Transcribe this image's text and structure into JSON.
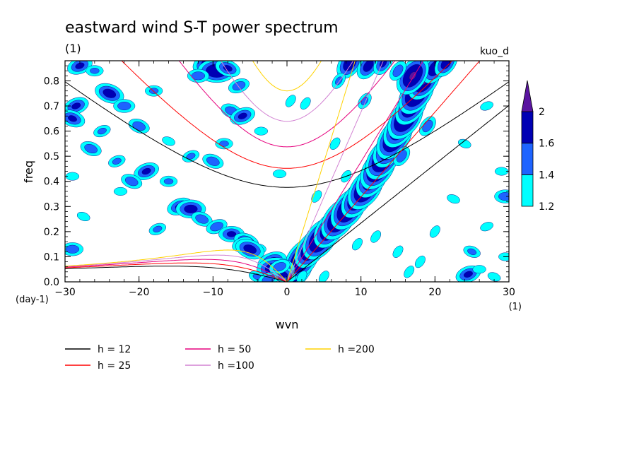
{
  "chart_data": {
    "type": "heatmap",
    "title": "eastward wind S-T power spectrum",
    "subtitle": "(1)",
    "tag": "kuo_d",
    "xlabel": "wvn",
    "ylabel": "freq",
    "x_unit": "(1)",
    "y_unit": "(day-1)",
    "xlim": [
      -30,
      30
    ],
    "ylim": [
      0,
      0.88
    ],
    "xticks": [
      "-30",
      "-20",
      "-10",
      "0",
      "10",
      "20",
      "30"
    ],
    "yticks": [
      "0.0",
      "0.1",
      "0.2",
      "0.3",
      "0.4",
      "0.5",
      "0.6",
      "0.7",
      "0.8"
    ],
    "colorbar": {
      "levels": [
        "1.2",
        "1.4",
        "1.6",
        "2"
      ],
      "colors": [
        "#00ffff",
        "#1e64ff",
        "#0000b4",
        "#5a14a0"
      ]
    },
    "dispersion_curves": [
      {
        "name": "h = 12",
        "h": 12,
        "color": "#000000"
      },
      {
        "name": "h = 25",
        "h": 25,
        "color": "#ff0000"
      },
      {
        "name": "h = 50",
        "h": 50,
        "color": "#e6007d"
      },
      {
        "name": "h =100",
        "h": 100,
        "color": "#d282d2"
      },
      {
        "name": "h =200",
        "h": 200,
        "color": "#ffd200"
      }
    ],
    "power_blobs": [
      {
        "x": 1.2,
        "y": 0.05,
        "v": 2.1
      },
      {
        "x": 2.0,
        "y": 0.09,
        "v": 2.1
      },
      {
        "x": 3.2,
        "y": 0.13,
        "v": 2.0
      },
      {
        "x": 4.5,
        "y": 0.17,
        "v": 2.1
      },
      {
        "x": 5.8,
        "y": 0.21,
        "v": 2.0
      },
      {
        "x": 7.0,
        "y": 0.25,
        "v": 2.1
      },
      {
        "x": 8.3,
        "y": 0.29,
        "v": 2.1
      },
      {
        "x": 9.5,
        "y": 0.33,
        "v": 2.0
      },
      {
        "x": 10.6,
        "y": 0.37,
        "v": 2.1
      },
      {
        "x": 11.5,
        "y": 0.41,
        "v": 2.0
      },
      {
        "x": 12.3,
        "y": 0.45,
        "v": 2.1
      },
      {
        "x": 13.0,
        "y": 0.49,
        "v": 2.1
      },
      {
        "x": 13.8,
        "y": 0.53,
        "v": 2.0
      },
      {
        "x": 14.5,
        "y": 0.57,
        "v": 2.1
      },
      {
        "x": 15.2,
        "y": 0.61,
        "v": 2.0
      },
      {
        "x": 16.0,
        "y": 0.65,
        "v": 2.1
      },
      {
        "x": 16.8,
        "y": 0.7,
        "v": 2.0
      },
      {
        "x": 17.5,
        "y": 0.75,
        "v": 2.1
      },
      {
        "x": 18.5,
        "y": 0.8,
        "v": 2.0
      },
      {
        "x": 20.0,
        "y": 0.85,
        "v": 1.8
      },
      {
        "x": 21.5,
        "y": 0.87,
        "v": 1.7
      },
      {
        "x": 17.0,
        "y": 0.82,
        "v": 2.0
      },
      {
        "x": 19.0,
        "y": 0.62,
        "v": 1.5
      },
      {
        "x": 15.5,
        "y": 0.5,
        "v": 1.5
      },
      {
        "x": -28.0,
        "y": 0.86,
        "v": 1.6
      },
      {
        "x": -26.0,
        "y": 0.84,
        "v": 1.4
      },
      {
        "x": -24.0,
        "y": 0.75,
        "v": 1.7
      },
      {
        "x": -28.5,
        "y": 0.7,
        "v": 1.6
      },
      {
        "x": -22.0,
        "y": 0.7,
        "v": 1.5
      },
      {
        "x": -29.0,
        "y": 0.65,
        "v": 1.6
      },
      {
        "x": -25.0,
        "y": 0.6,
        "v": 1.4
      },
      {
        "x": -18.0,
        "y": 0.76,
        "v": 1.4
      },
      {
        "x": -20.0,
        "y": 0.62,
        "v": 1.5
      },
      {
        "x": -23.0,
        "y": 0.48,
        "v": 1.4
      },
      {
        "x": -29.0,
        "y": 0.42,
        "v": 1.3
      },
      {
        "x": -26.5,
        "y": 0.53,
        "v": 1.5
      },
      {
        "x": -19.0,
        "y": 0.44,
        "v": 1.6
      },
      {
        "x": -16.0,
        "y": 0.4,
        "v": 1.4
      },
      {
        "x": -21.0,
        "y": 0.4,
        "v": 1.5
      },
      {
        "x": -10.5,
        "y": 0.87,
        "v": 1.8
      },
      {
        "x": -9.5,
        "y": 0.84,
        "v": 1.9
      },
      {
        "x": -8.0,
        "y": 0.85,
        "v": 1.6
      },
      {
        "x": -6.5,
        "y": 0.78,
        "v": 1.5
      },
      {
        "x": -12.0,
        "y": 0.82,
        "v": 1.5
      },
      {
        "x": -7.5,
        "y": 0.68,
        "v": 1.5
      },
      {
        "x": -6.0,
        "y": 0.66,
        "v": 1.6
      },
      {
        "x": -8.5,
        "y": 0.55,
        "v": 1.4
      },
      {
        "x": -10.0,
        "y": 0.48,
        "v": 1.5
      },
      {
        "x": -14.5,
        "y": 0.3,
        "v": 1.6
      },
      {
        "x": -13.0,
        "y": 0.29,
        "v": 1.7
      },
      {
        "x": -11.5,
        "y": 0.25,
        "v": 1.5
      },
      {
        "x": -9.5,
        "y": 0.22,
        "v": 1.5
      },
      {
        "x": -7.5,
        "y": 0.19,
        "v": 1.6
      },
      {
        "x": -5.5,
        "y": 0.16,
        "v": 1.6
      },
      {
        "x": -6.0,
        "y": 0.15,
        "v": 1.5
      },
      {
        "x": -4.0,
        "y": 0.13,
        "v": 1.4
      },
      {
        "x": -5.0,
        "y": 0.13,
        "v": 1.7
      },
      {
        "x": -2.0,
        "y": 0.08,
        "v": 1.7
      },
      {
        "x": -1.5,
        "y": 0.05,
        "v": 1.9
      },
      {
        "x": -0.5,
        "y": 0.03,
        "v": 1.6
      },
      {
        "x": -1.0,
        "y": 0.06,
        "v": 1.5
      },
      {
        "x": -29.0,
        "y": 0.13,
        "v": 1.5
      },
      {
        "x": -27.5,
        "y": 0.26,
        "v": 1.3
      },
      {
        "x": -17.5,
        "y": 0.21,
        "v": 1.4
      },
      {
        "x": -22.5,
        "y": 0.36,
        "v": 1.3
      },
      {
        "x": -16.0,
        "y": 0.56,
        "v": 1.3
      },
      {
        "x": -13.0,
        "y": 0.5,
        "v": 1.4
      },
      {
        "x": -3.5,
        "y": 0.6,
        "v": 1.3
      },
      {
        "x": 0.5,
        "y": 0.72,
        "v": 1.3
      },
      {
        "x": 2.5,
        "y": 0.71,
        "v": 1.3
      },
      {
        "x": -1.0,
        "y": 0.43,
        "v": 1.3
      },
      {
        "x": -4.0,
        "y": 0.02,
        "v": 1.4
      },
      {
        "x": -2.5,
        "y": 0.01,
        "v": 1.5
      },
      {
        "x": 2.0,
        "y": 0.02,
        "v": 1.3
      },
      {
        "x": 5.0,
        "y": 0.02,
        "v": 1.3
      },
      {
        "x": 8.5,
        "y": 0.87,
        "v": 1.8
      },
      {
        "x": 11.0,
        "y": 0.86,
        "v": 1.7
      },
      {
        "x": 13.0,
        "y": 0.87,
        "v": 1.6
      },
      {
        "x": 15.0,
        "y": 0.84,
        "v": 1.5
      },
      {
        "x": 7.0,
        "y": 0.8,
        "v": 1.4
      },
      {
        "x": 10.5,
        "y": 0.72,
        "v": 1.4
      },
      {
        "x": 6.5,
        "y": 0.55,
        "v": 1.3
      },
      {
        "x": 8.0,
        "y": 0.42,
        "v": 1.3
      },
      {
        "x": 4.0,
        "y": 0.34,
        "v": 1.3
      },
      {
        "x": 12.0,
        "y": 0.18,
        "v": 1.3
      },
      {
        "x": 15.0,
        "y": 0.12,
        "v": 1.3
      },
      {
        "x": 18.0,
        "y": 0.08,
        "v": 1.3
      },
      {
        "x": 9.5,
        "y": 0.15,
        "v": 1.3
      },
      {
        "x": 20.0,
        "y": 0.2,
        "v": 1.3
      },
      {
        "x": 25.0,
        "y": 0.12,
        "v": 1.4
      },
      {
        "x": 27.0,
        "y": 0.22,
        "v": 1.3
      },
      {
        "x": 29.5,
        "y": 0.34,
        "v": 1.5
      },
      {
        "x": 22.5,
        "y": 0.33,
        "v": 1.3
      },
      {
        "x": 24.5,
        "y": 0.03,
        "v": 1.6
      },
      {
        "x": 26.0,
        "y": 0.05,
        "v": 1.3
      },
      {
        "x": 28.0,
        "y": 0.02,
        "v": 1.3
      },
      {
        "x": 16.5,
        "y": 0.04,
        "v": 1.3
      },
      {
        "x": 29.0,
        "y": 0.44,
        "v": 1.3
      },
      {
        "x": 24.0,
        "y": 0.55,
        "v": 1.3
      },
      {
        "x": 27.0,
        "y": 0.7,
        "v": 1.3
      },
      {
        "x": 29.5,
        "y": 0.1,
        "v": 1.3
      }
    ]
  }
}
